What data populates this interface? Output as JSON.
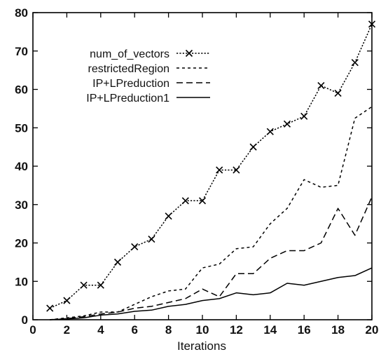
{
  "chart_data": {
    "type": "line",
    "xlabel": "Iterations",
    "ylabel": "",
    "xlim": [
      0,
      20
    ],
    "ylim": [
      0,
      80
    ],
    "xticks": [
      "0",
      "2",
      "4",
      "6",
      "8",
      "10",
      "12",
      "14",
      "16",
      "18",
      "20"
    ],
    "yticks": [
      "0",
      "10",
      "20",
      "30",
      "40",
      "50",
      "60",
      "70",
      "80"
    ],
    "grid": false,
    "legend_position": "top-left",
    "x": [
      1,
      2,
      3,
      4,
      5,
      6,
      7,
      8,
      9,
      10,
      11,
      12,
      13,
      14,
      15,
      16,
      17,
      18,
      19,
      20
    ],
    "series": [
      {
        "name": "num_of_vectors",
        "style": "dotted-x-markers",
        "color": "#000000",
        "values": [
          3,
          5,
          9,
          9,
          15,
          19,
          21,
          27,
          31,
          31,
          39,
          39,
          45,
          49,
          51,
          53,
          61,
          59,
          67,
          77
        ]
      },
      {
        "name": "restrictedRegion",
        "style": "short-dash",
        "color": "#000000",
        "values": [
          0,
          0.5,
          1,
          2,
          2,
          4,
          6,
          7.5,
          8,
          13.5,
          14.5,
          18.5,
          19,
          25,
          29,
          36.5,
          34.5,
          35,
          52.5,
          55.5
        ]
      },
      {
        "name": "IP+LPreduction",
        "style": "long-dash",
        "color": "#000000",
        "values": [
          0,
          0.3,
          0.8,
          1.5,
          2,
          3,
          3.5,
          4.5,
          5.5,
          8,
          6,
          12,
          12,
          16,
          18,
          18,
          20,
          29,
          22,
          32
        ]
      },
      {
        "name": "IP+LPreduction1",
        "style": "solid",
        "color": "#000000",
        "values": [
          0,
          0.2,
          0.5,
          1.2,
          1.5,
          2.2,
          2.5,
          3.5,
          4,
          5,
          5.5,
          7,
          6.5,
          7,
          9.5,
          9,
          10,
          11,
          11.5,
          13.5
        ]
      }
    ]
  }
}
